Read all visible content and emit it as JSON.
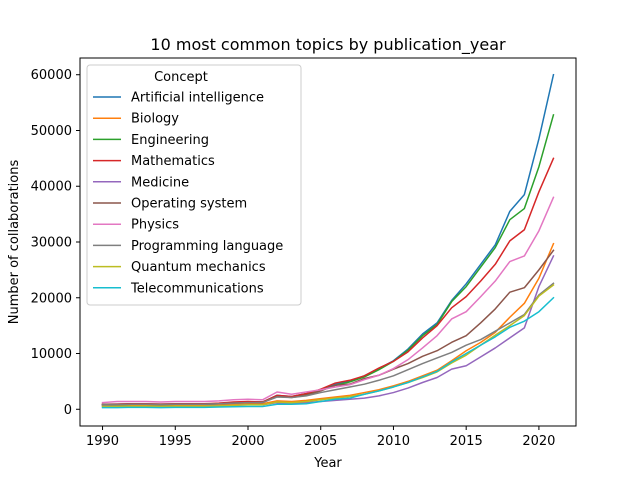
{
  "chart_data": {
    "type": "line",
    "title": "10 most common topics by publication_year",
    "xlabel": "Year",
    "ylabel": "Number of collaborations",
    "xlim": [
      1988.45,
      2022.55
    ],
    "ylim": [
      -3000,
      63000
    ],
    "xticks": [
      1990,
      1995,
      2000,
      2005,
      2010,
      2015,
      2020
    ],
    "yticks": [
      0,
      10000,
      20000,
      30000,
      40000,
      50000,
      60000
    ],
    "grid": false,
    "legend": {
      "title": "Concept",
      "placement": "upper-left"
    },
    "x": [
      1990,
      1991,
      1992,
      1993,
      1994,
      1995,
      1996,
      1997,
      1998,
      1999,
      2000,
      2001,
      2002,
      2003,
      2004,
      2005,
      2006,
      2007,
      2008,
      2009,
      2010,
      2011,
      2012,
      2013,
      2014,
      2015,
      2016,
      2017,
      2018,
      2019,
      2020,
      2021
    ],
    "series": [
      {
        "name": "Artificial intelligence",
        "color": "#1f77b4",
        "values": [
          800,
          850,
          900,
          900,
          850,
          900,
          900,
          900,
          1000,
          1200,
          1300,
          1300,
          2500,
          2300,
          2800,
          3500,
          4500,
          5000,
          6000,
          7300,
          8700,
          10800,
          13500,
          15500,
          19500,
          22500,
          26000,
          29500,
          35500,
          38500,
          48500,
          60000
        ]
      },
      {
        "name": "Biology",
        "color": "#ff7f0e",
        "values": [
          700,
          700,
          750,
          750,
          700,
          700,
          700,
          700,
          800,
          900,
          1000,
          1000,
          1500,
          1400,
          1600,
          1900,
          2200,
          2500,
          3000,
          3500,
          4200,
          5000,
          6000,
          7000,
          8700,
          10500,
          12000,
          13800,
          16500,
          19000,
          23500,
          29700
        ]
      },
      {
        "name": "Engineering",
        "color": "#2ca02c",
        "values": [
          800,
          850,
          900,
          900,
          850,
          900,
          900,
          900,
          1000,
          1200,
          1300,
          1300,
          2400,
          2200,
          2700,
          3400,
          4300,
          4900,
          5800,
          7100,
          8600,
          10600,
          13200,
          15200,
          19300,
          22000,
          25500,
          29000,
          34000,
          36000,
          43500,
          52800
        ]
      },
      {
        "name": "Mathematics",
        "color": "#d62728",
        "values": [
          900,
          950,
          1000,
          1000,
          950,
          1000,
          1000,
          1000,
          1100,
          1300,
          1400,
          1300,
          2500,
          2300,
          2800,
          3600,
          4700,
          5200,
          6000,
          7400,
          8600,
          10300,
          12800,
          15000,
          18200,
          20200,
          23000,
          26000,
          30200,
          32200,
          39000,
          45000
        ]
      },
      {
        "name": "Medicine",
        "color": "#9467bd",
        "values": [
          500,
          500,
          550,
          550,
          500,
          500,
          500,
          550,
          600,
          700,
          800,
          800,
          1200,
          1100,
          1200,
          1400,
          1600,
          1800,
          2000,
          2400,
          3000,
          3800,
          4800,
          5700,
          7200,
          7800,
          9400,
          11000,
          12800,
          14600,
          22000,
          27500
        ]
      },
      {
        "name": "Operating system",
        "color": "#8c564b",
        "values": [
          900,
          900,
          950,
          950,
          900,
          950,
          950,
          950,
          1000,
          1100,
          1200,
          1200,
          2300,
          2100,
          2500,
          3300,
          4300,
          4500,
          5500,
          6100,
          7200,
          8200,
          9500,
          10500,
          12000,
          13200,
          15500,
          18000,
          21000,
          21800,
          25000,
          28500
        ]
      },
      {
        "name": "Physics",
        "color": "#e377c2",
        "values": [
          1200,
          1400,
          1400,
          1400,
          1300,
          1400,
          1400,
          1400,
          1500,
          1700,
          1800,
          1700,
          3100,
          2700,
          3100,
          3500,
          4000,
          4400,
          5300,
          6100,
          7300,
          8900,
          11000,
          13200,
          16200,
          17500,
          20200,
          23000,
          26500,
          27500,
          32000,
          38000
        ]
      },
      {
        "name": "Programming language",
        "color": "#7f7f7f",
        "values": [
          800,
          850,
          900,
          900,
          850,
          900,
          900,
          900,
          1000,
          1100,
          1200,
          1200,
          2200,
          2100,
          2400,
          3000,
          3500,
          4000,
          4500,
          5200,
          6000,
          7100,
          8200,
          9200,
          10200,
          11500,
          12500,
          14000,
          15500,
          17000,
          20500,
          22600
        ]
      },
      {
        "name": "Quantum mechanics",
        "color": "#bcbd22",
        "values": [
          500,
          500,
          550,
          550,
          500,
          550,
          550,
          550,
          600,
          700,
          800,
          800,
          1300,
          1200,
          1400,
          1700,
          2000,
          2300,
          2700,
          3300,
          4000,
          4800,
          5700,
          6700,
          8300,
          9700,
          11500,
          13300,
          15000,
          16800,
          20300,
          22300
        ]
      },
      {
        "name": "Telecommunications",
        "color": "#17becf",
        "values": [
          300,
          300,
          350,
          350,
          300,
          350,
          350,
          350,
          400,
          450,
          500,
          500,
          900,
          900,
          1000,
          1400,
          1800,
          2000,
          2700,
          3300,
          4000,
          4800,
          5800,
          6800,
          8500,
          10000,
          11500,
          13000,
          14700,
          15800,
          17500,
          20000
        ]
      }
    ]
  }
}
